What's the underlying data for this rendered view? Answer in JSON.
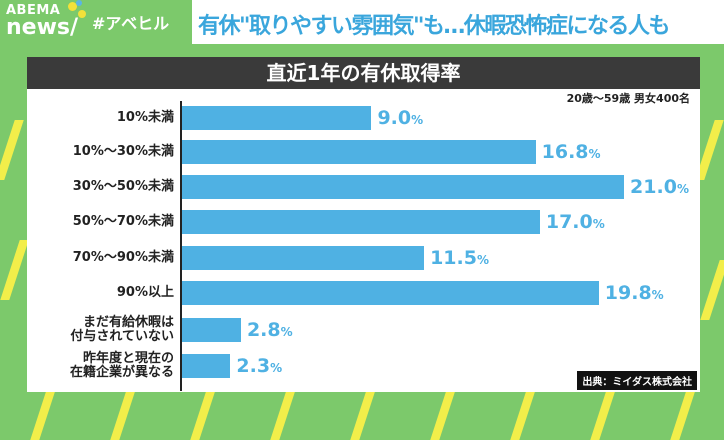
{
  "brand": {
    "logo_top": "ABEMA",
    "logo_bottom": "news/",
    "hashtag": "#アベヒル"
  },
  "headline": "有休\"取りやすい雰囲気\"も…休暇恐怖症になる人も",
  "colors": {
    "background": "#7cc96b",
    "bar": "#4fb1e3",
    "headline": "#3aa6dc",
    "stripe": "#f2ee4a"
  },
  "chart_data": {
    "type": "bar",
    "orientation": "horizontal",
    "title": "直近1年の有休取得率",
    "subtitle": "20歳～59歳 男女400名",
    "source": "出典：ミイダス株式会社",
    "unit": "%",
    "categories": [
      "10%未満",
      "10%～30%未満",
      "30%～50%未満",
      "50%～70%未満",
      "70%～90%未満",
      "90%以上",
      "まだ有給休暇は\n付与されていない",
      "昨年度と現在の\n在籍企業が異なる"
    ],
    "values": [
      9.0,
      16.8,
      21.0,
      17.0,
      11.5,
      19.8,
      2.8,
      2.3
    ],
    "labels": [
      "9.0",
      "16.8",
      "21.0",
      "17.0",
      "11.5",
      "19.8",
      "2.8",
      "2.3"
    ]
  }
}
